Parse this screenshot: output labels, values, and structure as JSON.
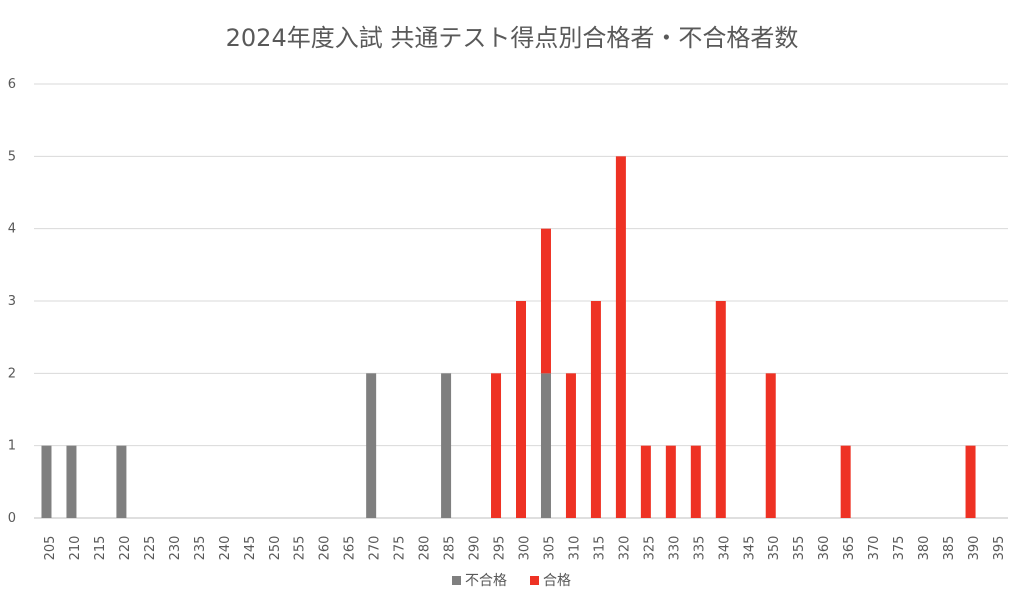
{
  "chart_data": {
    "type": "bar",
    "stacked": true,
    "title": "2024年度入試 共通テスト得点別合格者・不合格者数",
    "xlabel": "",
    "ylabel": "",
    "ylim": [
      0,
      6
    ],
    "yticks": [
      0,
      1,
      2,
      3,
      4,
      5,
      6
    ],
    "grid": true,
    "legend_position": "bottom",
    "categories": [
      "205",
      "210",
      "215",
      "220",
      "225",
      "230",
      "235",
      "240",
      "245",
      "250",
      "255",
      "260",
      "265",
      "270",
      "275",
      "280",
      "285",
      "290",
      "295",
      "300",
      "305",
      "310",
      "315",
      "320",
      "325",
      "330",
      "335",
      "340",
      "345",
      "350",
      "355",
      "360",
      "365",
      "370",
      "375",
      "380",
      "385",
      "390",
      "395"
    ],
    "series": [
      {
        "name": "不合格",
        "color": "#7f7f7f",
        "values": [
          1,
          1,
          0,
          1,
          0,
          0,
          0,
          0,
          0,
          0,
          0,
          0,
          0,
          2,
          0,
          0,
          2,
          0,
          0,
          0,
          2,
          0,
          0,
          0,
          0,
          0,
          0,
          0,
          0,
          0,
          0,
          0,
          0,
          0,
          0,
          0,
          0,
          0,
          0
        ]
      },
      {
        "name": "合格",
        "color": "#ee3224",
        "values": [
          0,
          0,
          0,
          0,
          0,
          0,
          0,
          0,
          0,
          0,
          0,
          0,
          0,
          0,
          0,
          0,
          0,
          0,
          2,
          3,
          2,
          2,
          3,
          5,
          1,
          1,
          1,
          3,
          0,
          2,
          0,
          0,
          1,
          0,
          0,
          0,
          0,
          1,
          0
        ]
      }
    ]
  }
}
